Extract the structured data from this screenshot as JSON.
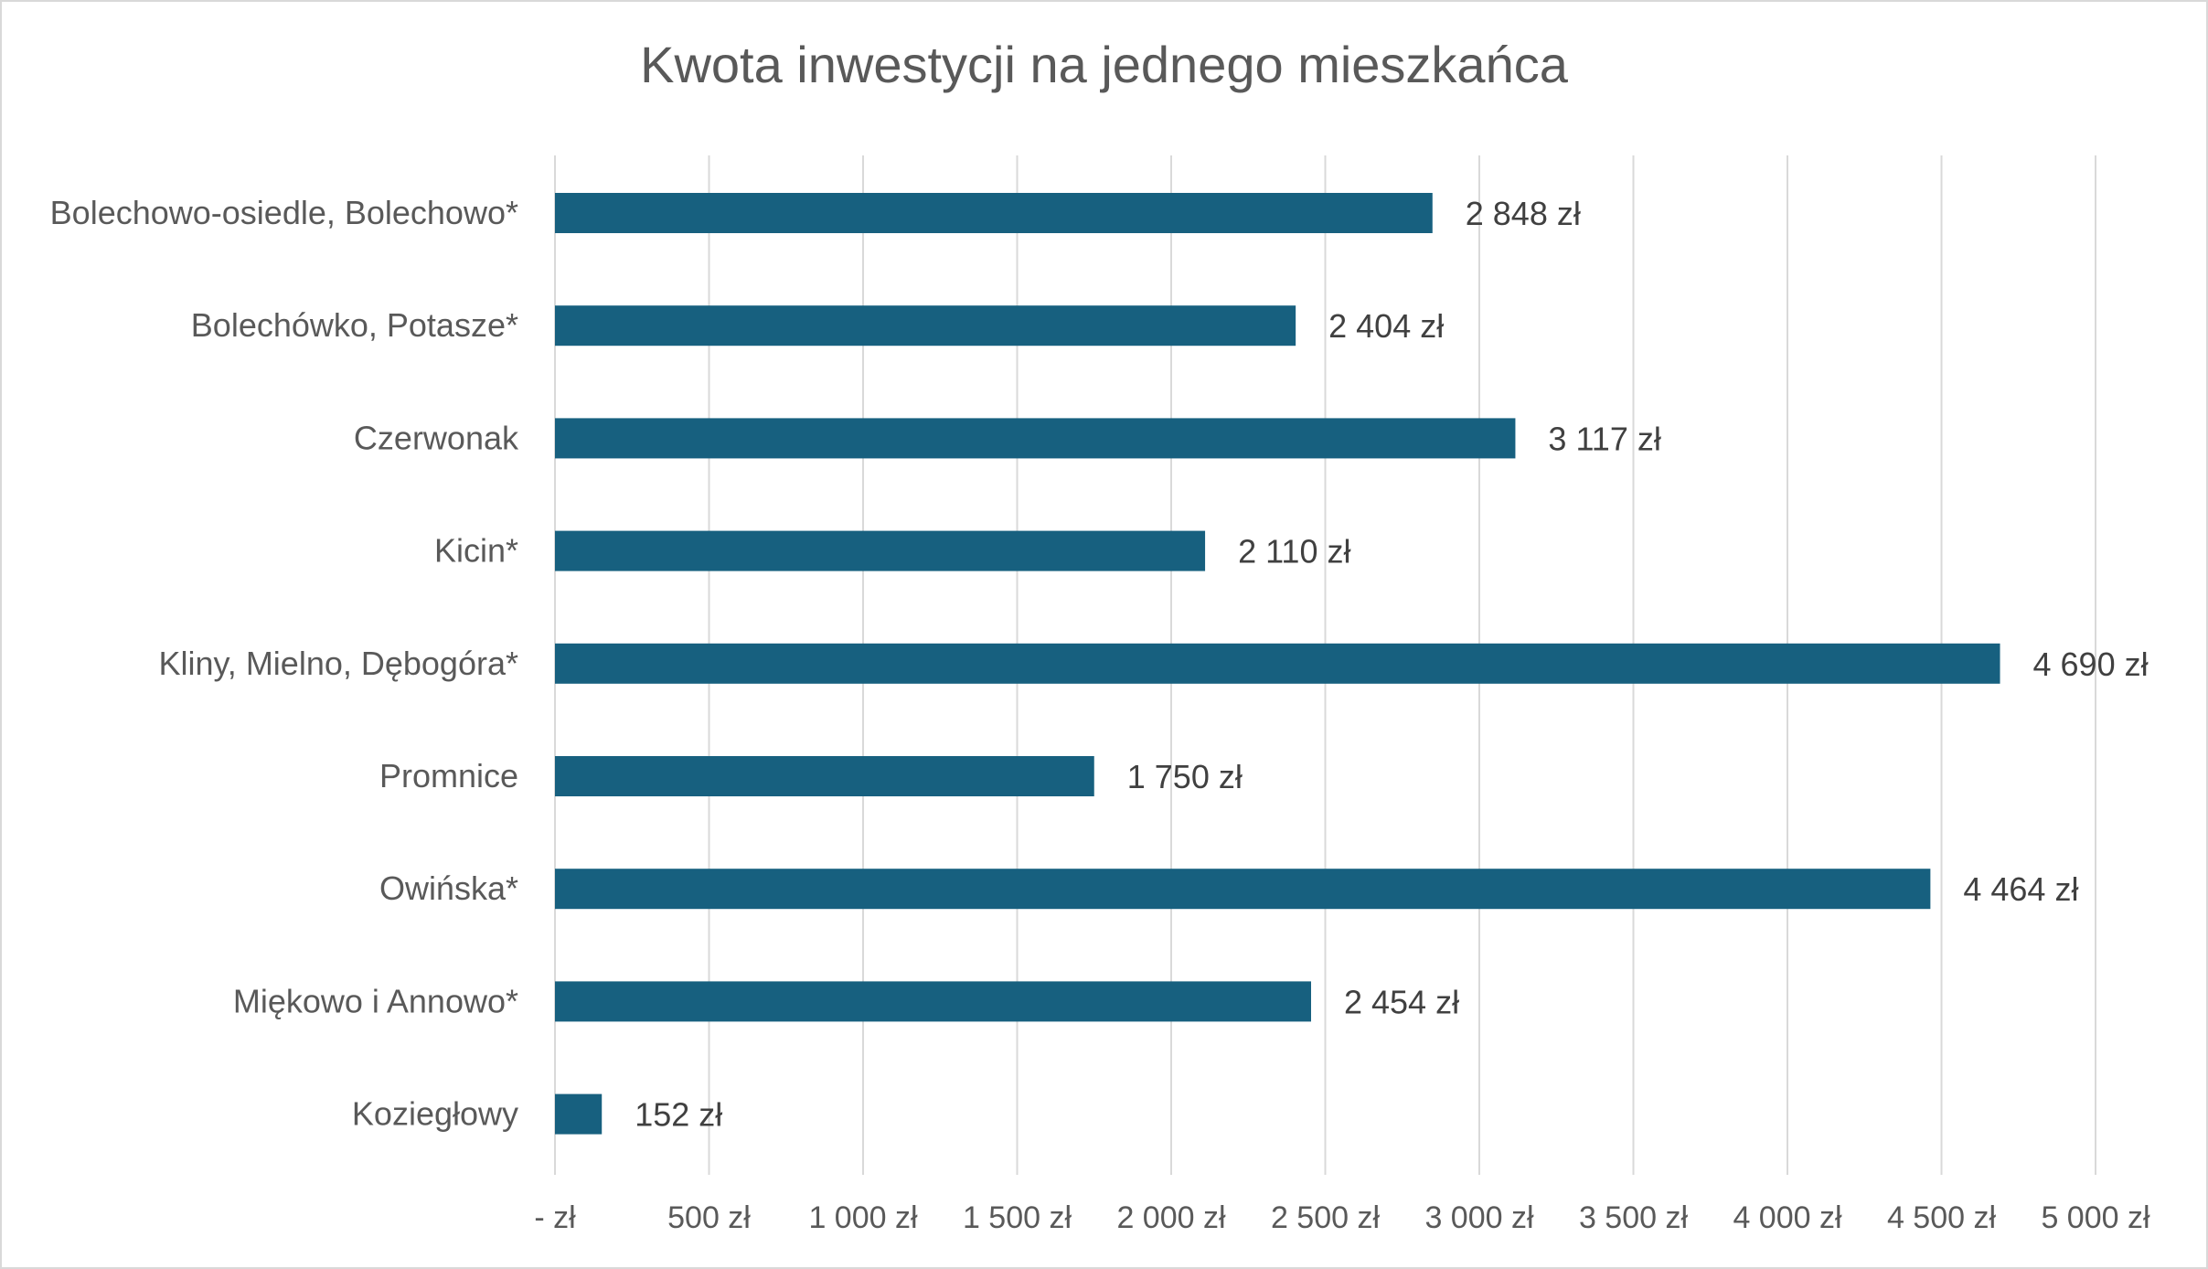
{
  "chart_data": {
    "type": "bar",
    "orientation": "horizontal",
    "title": "Kwota inwestycji na jednego mieszkańca",
    "categories": [
      "Bolechowo-osiedle, Bolechowo*",
      "Bolechówko, Potasze*",
      "Czerwonak",
      "Kicin*",
      "Kliny, Mielno, Dębogóra*",
      "Promnice",
      "Owińska*",
      "Miękowo i Annowo*",
      "Koziegłowy"
    ],
    "values": [
      2848,
      2404,
      3117,
      2110,
      4690,
      1750,
      4464,
      2454,
      152
    ],
    "value_labels": [
      "2 848 zł",
      "2 404 zł",
      "3 117 zł",
      "2 110 zł",
      "4 690 zł",
      "1 750 zł",
      "4 464 zł",
      "2 454 zł",
      "152 zł"
    ],
    "xlim": [
      0,
      5000
    ],
    "x_ticks": [
      0,
      500,
      1000,
      1500,
      2000,
      2500,
      3000,
      3500,
      4000,
      4500,
      5000
    ],
    "x_tick_labels": [
      "-  zł",
      "500 zł",
      "1 000 zł",
      "1 500 zł",
      "2 000 zł",
      "2 500 zł",
      "3 000 zł",
      "3 500 zł",
      "4 000 zł",
      "4 500 zł",
      "5 000 zł"
    ],
    "xlabel": "",
    "ylabel": "",
    "grid": "vertical",
    "legend": "none",
    "bar_color": "#17607f",
    "grid_color": "#d9d9d9",
    "text_color": "#595959"
  }
}
